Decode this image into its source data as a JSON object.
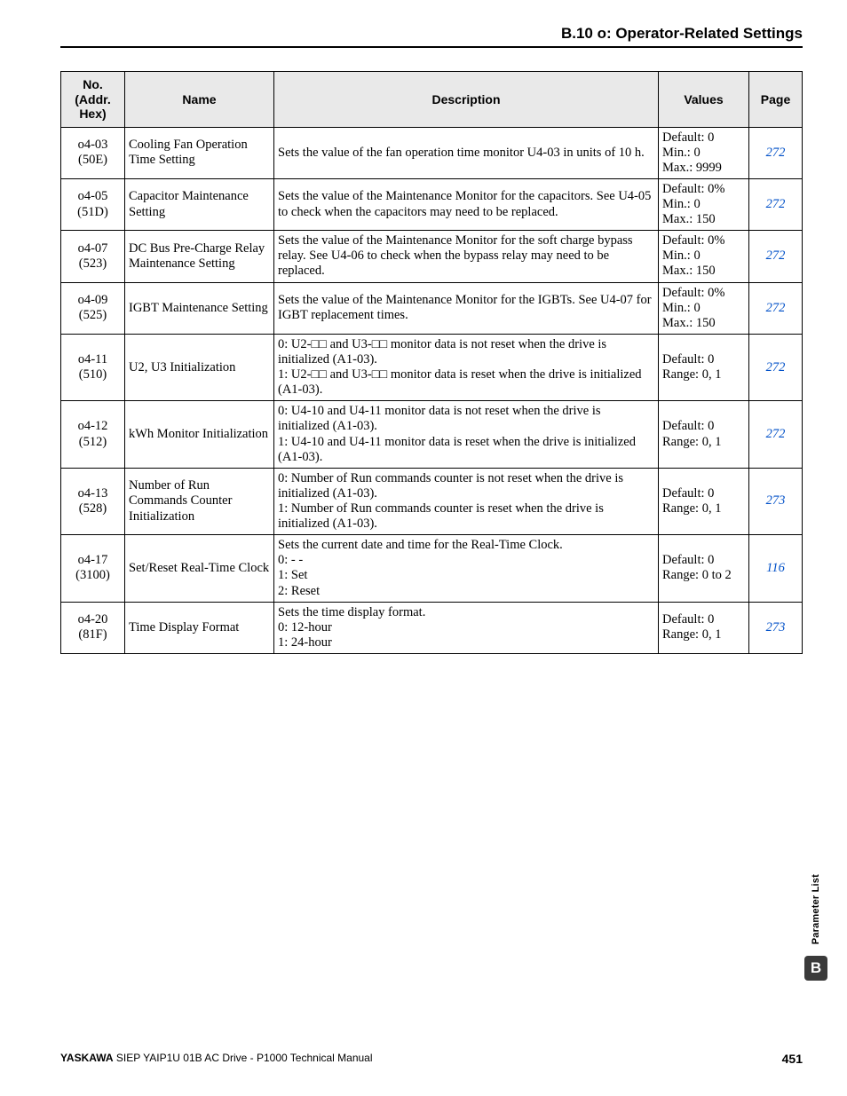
{
  "header": {
    "section": "B.10 o: Operator-Related Settings"
  },
  "table": {
    "columns": [
      "No.\n(Addr.\nHex)",
      "Name",
      "Description",
      "Values",
      "Page"
    ],
    "rows": [
      {
        "no": "o4-03\n(50E)",
        "name": "Cooling Fan Operation Time Setting",
        "desc": "Sets the value of the fan operation time monitor U4-03 in units of 10 h.",
        "values": "Default: 0\nMin.: 0\nMax.: 9999",
        "page": "272"
      },
      {
        "no": "o4-05\n(51D)",
        "name": "Capacitor Maintenance Setting",
        "desc": "Sets the value of the Maintenance Monitor for the capacitors. See U4-05 to check when the capacitors may need to be replaced.",
        "values": "Default: 0%\nMin.: 0\nMax.: 150",
        "page": "272"
      },
      {
        "no": "o4-07\n(523)",
        "name": "DC Bus Pre-Charge Relay Maintenance Setting",
        "desc": "Sets the value of the Maintenance Monitor for the soft charge bypass relay. See U4-06 to check when the bypass relay may need to be replaced.",
        "values": "Default: 0%\nMin.: 0\nMax.: 150",
        "page": "272"
      },
      {
        "no": "o4-09\n(525)",
        "name": "IGBT Maintenance Setting",
        "desc": "Sets the value of the Maintenance Monitor for the IGBTs. See U4-07 for IGBT replacement times.",
        "values": "Default: 0%\nMin.: 0\nMax.: 150",
        "page": "272"
      },
      {
        "no": "o4-11\n(510)",
        "name": "U2, U3 Initialization",
        "desc": "0: U2-□□ and U3-□□ monitor data is not reset when the drive is initialized (A1-03).\n1: U2-□□ and U3-□□ monitor data is reset when the drive is initialized (A1-03).",
        "values": "Default: 0\nRange: 0, 1",
        "page": "272"
      },
      {
        "no": "o4-12\n(512)",
        "name": "kWh Monitor Initialization",
        "desc": "0: U4-10 and U4-11 monitor data is not reset when the drive is initialized (A1-03).\n1: U4-10 and U4-11 monitor data is reset when the drive is initialized (A1-03).",
        "values": "Default: 0\nRange: 0, 1",
        "page": "272"
      },
      {
        "no": "o4-13\n(528)",
        "name": "Number of Run Commands Counter Initialization",
        "desc": "0: Number of Run commands counter is not reset when the drive is initialized (A1-03).\n1: Number of Run commands counter is reset when the drive is initialized (A1-03).",
        "values": "Default: 0\nRange: 0, 1",
        "page": "273"
      },
      {
        "no": "o4-17\n(3100)",
        "name": "Set/Reset Real-Time Clock",
        "desc": "Sets the current date and time for the Real-Time Clock.\n0: - -\n1: Set\n2: Reset",
        "values": "Default: 0\nRange: 0 to 2",
        "page": "116"
      },
      {
        "no": "o4-20\n(81F)",
        "name": "Time Display Format",
        "desc": "Sets the time display format.\n0: 12-hour\n1: 24-hour",
        "values": "Default: 0\nRange: 0, 1",
        "page": "273"
      }
    ]
  },
  "side": {
    "label": "Parameter List",
    "badge": "B"
  },
  "footer": {
    "brand": "YASKAWA",
    "doc": " SIEP YAIP1U 01B AC Drive - P1000 Technical Manual",
    "page": "451"
  },
  "colors": {
    "header_bg": "#e9e9e9",
    "link": "#0050c8",
    "badge_bg": "#3a3a3a",
    "text": "#000000",
    "page_bg": "#ffffff"
  }
}
